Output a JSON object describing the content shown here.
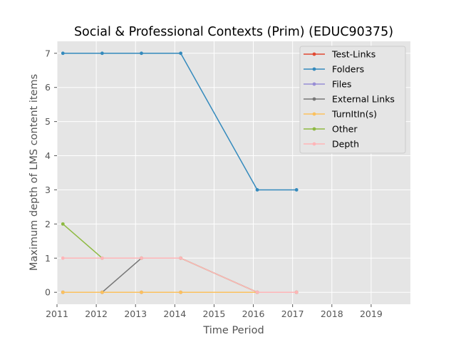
{
  "chart_data": {
    "type": "line",
    "title": "Social & Professional Contexts (Prim) (EDUC90375)",
    "xlabel": "Time Period",
    "ylabel": "Maximum depth of LMS content items",
    "xlim": [
      2011.0,
      2020.0
    ],
    "ylim": [
      -0.35,
      7.35
    ],
    "x_ticks": [
      2011,
      2012,
      2013,
      2014,
      2015,
      2016,
      2017,
      2018,
      2019
    ],
    "y_ticks": [
      0,
      1,
      2,
      3,
      4,
      5,
      6,
      7
    ],
    "grid": true,
    "legend_position": "top-right",
    "x": [
      2011.15,
      2012.15,
      2013.15,
      2014.15,
      2016.1,
      2017.1
    ],
    "series": [
      {
        "name": "Test-Links",
        "color": "#E24A33",
        "values": [
          0,
          0,
          0,
          0,
          0,
          0
        ]
      },
      {
        "name": "Folders",
        "color": "#348ABD",
        "values": [
          7,
          7,
          7,
          7,
          3,
          3
        ]
      },
      {
        "name": "Files",
        "color": "#988ED5",
        "values": [
          0,
          0,
          0,
          0,
          0,
          0
        ]
      },
      {
        "name": "External Links",
        "color": "#777777",
        "values": [
          0,
          0,
          1,
          1,
          0,
          0
        ]
      },
      {
        "name": "TurnItIn(s)",
        "color": "#FBC15E",
        "values": [
          0,
          0,
          0,
          0,
          0,
          0
        ]
      },
      {
        "name": "Other",
        "color": "#8EBA42",
        "values": [
          2,
          1,
          1,
          1,
          0,
          0
        ]
      },
      {
        "name": "Depth",
        "color": "#FFB5B8",
        "values": [
          1,
          1,
          1,
          1,
          0,
          0
        ]
      }
    ]
  }
}
